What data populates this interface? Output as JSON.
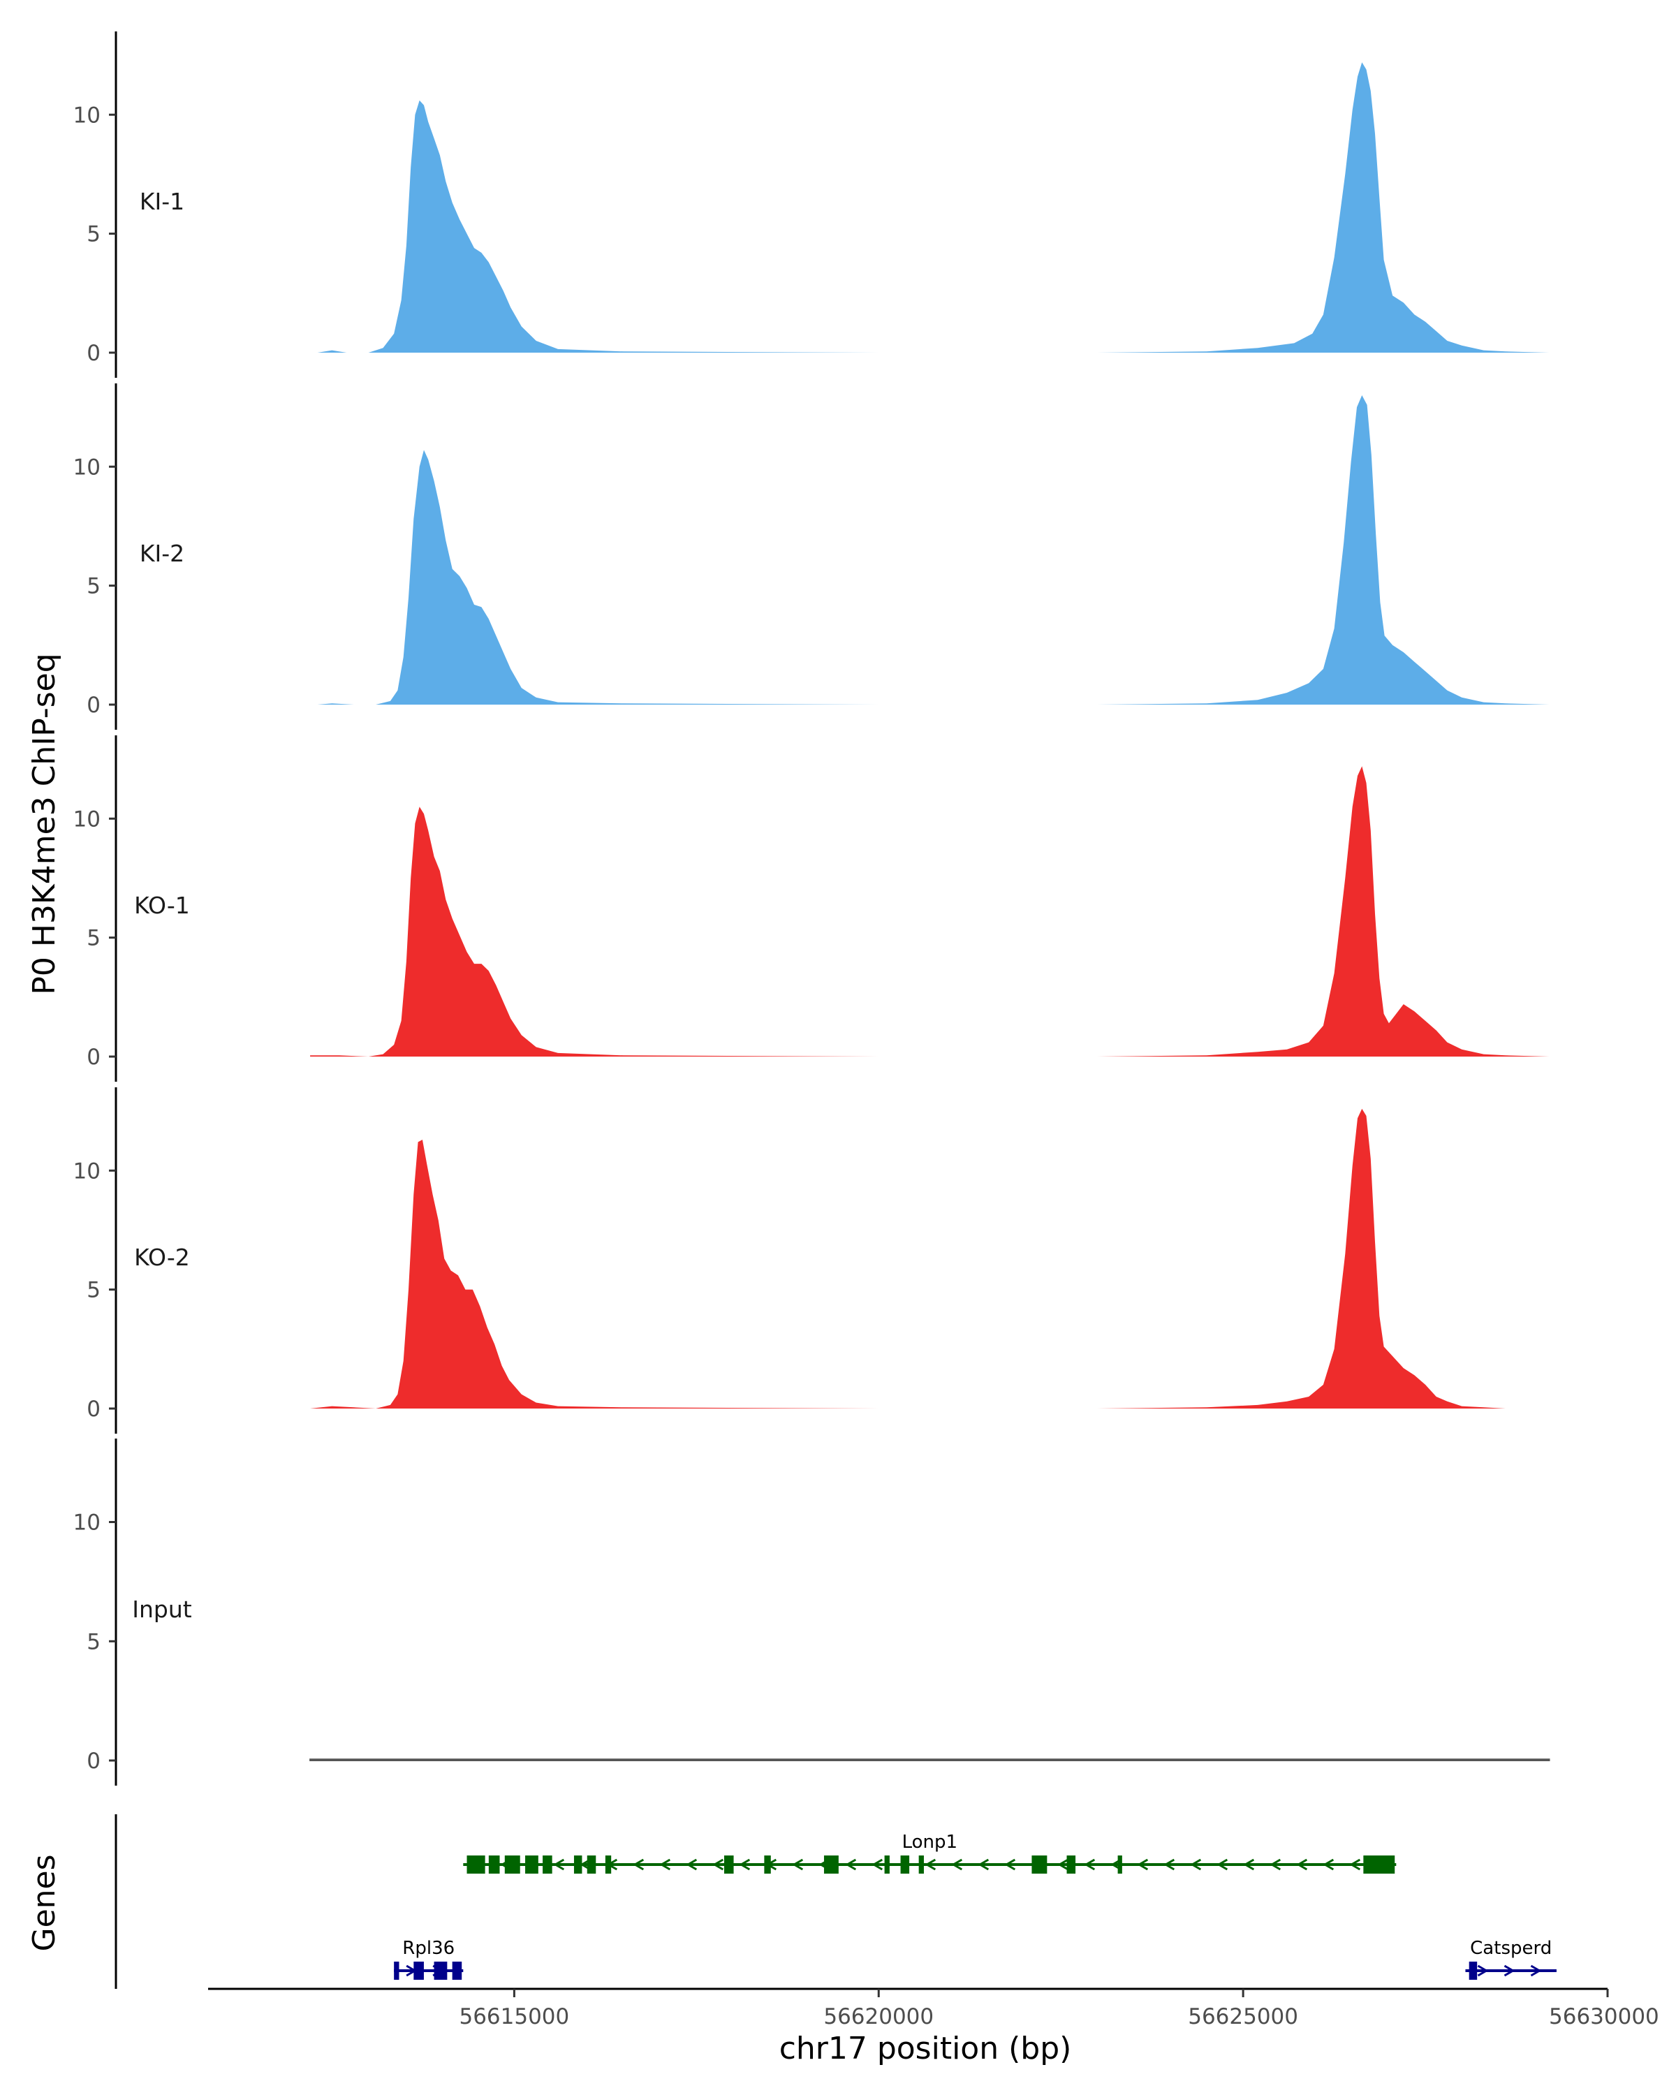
{
  "chart_data": {
    "type": "area",
    "title": "",
    "xlabel": "chr17 position (bp)",
    "ylabel": "P0 H3K4me3 ChIP-seq",
    "xlim": [
      56610800,
      56630000
    ],
    "x_ticks": [
      56615000,
      56620000,
      56625000,
      56630000
    ],
    "x_tick_labels": [
      "56615000",
      "56620000",
      "56625000",
      "56630000"
    ],
    "ylim": [
      0,
      13.5
    ],
    "y_ticks": [
      0,
      5,
      10
    ],
    "y_tick_labels": [
      "0",
      "5",
      "10"
    ],
    "colors": {
      "KI": "#5dade8",
      "KO": "#ee2c2c",
      "Input": "#555555",
      "gene_primary": "#006400",
      "gene_secondary": "#00008b"
    },
    "series": [
      {
        "name": "KI-1",
        "color": "#5dade8",
        "x": [
          56612300,
          56612500,
          56612700,
          56613000,
          56613200,
          56613350,
          56613450,
          56613520,
          56613580,
          56613640,
          56613700,
          56613760,
          56613820,
          56613900,
          56613980,
          56614060,
          56614150,
          56614250,
          56614350,
          56614450,
          56614550,
          56614650,
          56614750,
          56614850,
          56614950,
          56615100,
          56615300,
          56615600,
          56616500,
          56620000,
          56623000,
          56624500,
          56625200,
          56625700,
          56625950,
          56626100,
          56626250,
          56626400,
          56626500,
          56626570,
          56626630,
          56626690,
          56626750,
          56626810,
          56626870,
          56626930,
          56627050,
          56627200,
          56627350,
          56627500,
          56627650,
          56627800,
          56628000,
          56628300,
          56628600,
          56629200
        ],
        "values": [
          0,
          0.1,
          0,
          0,
          0.2,
          0.8,
          2.2,
          4.5,
          7.8,
          10.0,
          10.6,
          10.4,
          9.7,
          9.0,
          8.3,
          7.2,
          6.3,
          5.6,
          5.0,
          4.4,
          4.2,
          3.8,
          3.2,
          2.6,
          1.9,
          1.1,
          0.5,
          0.15,
          0.05,
          0,
          0,
          0.05,
          0.2,
          0.4,
          0.8,
          1.6,
          4.0,
          7.5,
          10.2,
          11.6,
          12.2,
          11.9,
          11.0,
          9.2,
          6.5,
          3.9,
          2.4,
          2.1,
          1.6,
          1.3,
          0.9,
          0.5,
          0.3,
          0.1,
          0.05,
          0
        ]
      },
      {
        "name": "KI-2",
        "color": "#5dade8",
        "x": [
          56612300,
          56612500,
          56612800,
          56613100,
          56613300,
          56613400,
          56613480,
          56613550,
          56613620,
          56613700,
          56613760,
          56613820,
          56613900,
          56613980,
          56614060,
          56614150,
          56614250,
          56614350,
          56614450,
          56614550,
          56614650,
          56614750,
          56614850,
          56614950,
          56615100,
          56615300,
          56615600,
          56616500,
          56620000,
          56623000,
          56624500,
          56625200,
          56625600,
          56625900,
          56626100,
          56626250,
          56626380,
          56626480,
          56626560,
          56626630,
          56626700,
          56626760,
          56626820,
          56626880,
          56626940,
          56627050,
          56627200,
          56627350,
          56627500,
          56627650,
          56627800,
          56628000,
          56628300,
          56628600,
          56629200
        ],
        "values": [
          0,
          0.05,
          0,
          0,
          0.15,
          0.6,
          2.0,
          4.5,
          7.8,
          10.0,
          10.7,
          10.3,
          9.4,
          8.3,
          6.9,
          5.7,
          5.4,
          4.9,
          4.2,
          4.1,
          3.6,
          2.9,
          2.2,
          1.5,
          0.7,
          0.3,
          0.1,
          0.05,
          0,
          0,
          0.05,
          0.2,
          0.5,
          0.9,
          1.5,
          3.2,
          6.8,
          10.2,
          12.5,
          13.0,
          12.6,
          10.5,
          7.2,
          4.3,
          2.9,
          2.5,
          2.2,
          1.8,
          1.4,
          1.0,
          0.6,
          0.3,
          0.1,
          0.05,
          0
        ]
      },
      {
        "name": "KO-1",
        "color": "#ee2c2c",
        "x": [
          56612200,
          56612600,
          56613000,
          56613200,
          56613350,
          56613450,
          56613520,
          56613580,
          56613640,
          56613700,
          56613760,
          56613820,
          56613900,
          56613980,
          56614060,
          56614150,
          56614250,
          56614350,
          56614450,
          56614550,
          56614650,
          56614750,
          56614850,
          56614950,
          56615100,
          56615300,
          56615600,
          56616500,
          56620000,
          56623000,
          56624500,
          56625200,
          56625600,
          56625900,
          56626100,
          56626250,
          56626400,
          56626500,
          56626570,
          56626630,
          56626690,
          56626750,
          56626810,
          56626870,
          56626930,
          56627000,
          56627100,
          56627200,
          56627350,
          56627500,
          56627650,
          56627800,
          56628000,
          56628300,
          56628600,
          56629200
        ],
        "values": [
          0.05,
          0.05,
          0,
          0.1,
          0.5,
          1.5,
          4.0,
          7.5,
          9.8,
          10.5,
          10.2,
          9.5,
          8.4,
          7.8,
          6.6,
          5.8,
          5.1,
          4.4,
          3.9,
          3.9,
          3.6,
          3.0,
          2.3,
          1.6,
          0.9,
          0.4,
          0.15,
          0.05,
          0,
          0,
          0.05,
          0.2,
          0.3,
          0.6,
          1.3,
          3.5,
          7.5,
          10.5,
          11.8,
          12.2,
          11.5,
          9.5,
          6.0,
          3.3,
          1.8,
          1.4,
          1.8,
          2.2,
          1.9,
          1.5,
          1.1,
          0.6,
          0.3,
          0.1,
          0.05,
          0
        ]
      },
      {
        "name": "KO-2",
        "color": "#ee2c2c",
        "x": [
          56612200,
          56612500,
          56612800,
          56613100,
          56613300,
          56613400,
          56613480,
          56613550,
          56613620,
          56613680,
          56613740,
          56613800,
          56613880,
          56613960,
          56614040,
          56614130,
          56614230,
          56614330,
          56614430,
          56614530,
          56614630,
          56614730,
          56614830,
          56614930,
          56615100,
          56615300,
          56615600,
          56616500,
          56620000,
          56623000,
          56624500,
          56625200,
          56625600,
          56625900,
          56626100,
          56626250,
          56626400,
          56626500,
          56626570,
          56626630,
          56626690,
          56626750,
          56626810,
          56626870,
          56626930,
          56627050,
          56627200,
          56627350,
          56627500,
          56627650,
          56627800,
          56628000,
          56628300,
          56628600,
          56629200
        ],
        "values": [
          0,
          0.1,
          0.05,
          0,
          0.15,
          0.6,
          2.0,
          5.0,
          9.0,
          11.2,
          11.3,
          10.3,
          9.0,
          7.9,
          6.3,
          5.8,
          5.6,
          5.0,
          5.0,
          4.3,
          3.4,
          2.7,
          1.8,
          1.2,
          0.6,
          0.25,
          0.1,
          0.05,
          0,
          0,
          0.05,
          0.15,
          0.3,
          0.5,
          1.0,
          2.5,
          6.5,
          10.2,
          12.2,
          12.6,
          12.3,
          10.5,
          7.0,
          3.9,
          2.6,
          2.2,
          1.7,
          1.4,
          1.0,
          0.5,
          0.3,
          0.1,
          0.05,
          0,
          0
        ]
      },
      {
        "name": "Input",
        "color": "#555555",
        "x": [
          56612200,
          56614000,
          56616000,
          56618000,
          56620000,
          56622000,
          56624000,
          56626000,
          56628000,
          56629200
        ],
        "values": [
          0.05,
          0.05,
          0.05,
          0.05,
          0.05,
          0.05,
          0.05,
          0.05,
          0.05,
          0.05
        ]
      }
    ],
    "genes_track": {
      "label": "Genes",
      "genes": [
        {
          "name": "Lonp1",
          "strand": "-",
          "row": 1,
          "color": "#006400",
          "start": 56614300,
          "end": 56627100,
          "exons": [
            [
              56614350,
              56614600
            ],
            [
              56614650,
              56614800
            ],
            [
              56614870,
              56615080
            ],
            [
              56615150,
              56615330
            ],
            [
              56615390,
              56615520
            ],
            [
              56615820,
              56615930
            ],
            [
              56616000,
              56616120
            ],
            [
              56616250,
              56616330
            ],
            [
              56617880,
              56618010
            ],
            [
              56618430,
              56618520
            ],
            [
              56619250,
              56619450
            ],
            [
              56620080,
              56620150
            ],
            [
              56620300,
              56620420
            ],
            [
              56620550,
              56620620
            ],
            [
              56622100,
              56622310
            ],
            [
              56622580,
              56622700
            ],
            [
              56623280,
              56623340
            ],
            [
              56626650,
              56627080
            ]
          ]
        },
        {
          "name": "Rpl36",
          "strand": "+",
          "row": 2,
          "color": "#00008b",
          "start": 56613350,
          "end": 56614300,
          "exons": [
            [
              56613350,
              56613420
            ],
            [
              56613620,
              56613760
            ],
            [
              56613900,
              56614080
            ],
            [
              56614150,
              56614280
            ]
          ]
        },
        {
          "name": "Catsperd",
          "strand": "+",
          "row": 2,
          "color": "#00008b",
          "start": 56628050,
          "end": 56629300,
          "exons": [
            [
              56628100,
              56628210
            ]
          ]
        }
      ]
    }
  }
}
